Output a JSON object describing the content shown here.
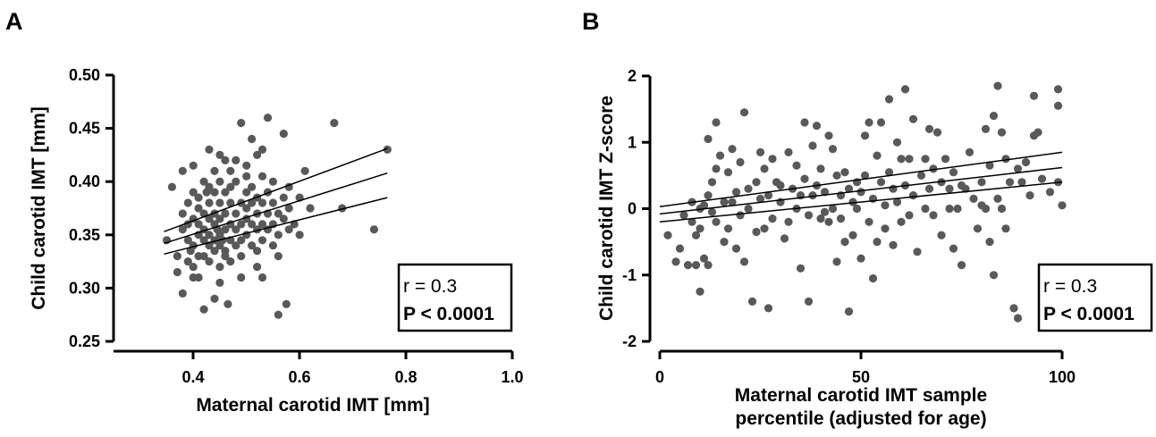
{
  "chart_data": [
    {
      "panel": "A",
      "type": "scatter",
      "xlabel": "Maternal carotid IMT [mm]",
      "ylabel": "Child carotid IMT [mm]",
      "xlim": [
        0.25,
        1.0
      ],
      "ylim": [
        0.25,
        0.5
      ],
      "x_ticks": [
        "0.4",
        "0.6",
        "0.8",
        "1.0"
      ],
      "y_ticks": [
        "0.25",
        "0.30",
        "0.35",
        "0.40",
        "0.45",
        "0.50"
      ],
      "stats": {
        "r": "r = 0.3",
        "p": "P < 0.0001"
      },
      "marker_color": "#595959",
      "regression": {
        "x": [
          0.345,
          0.765
        ],
        "fit": [
          0.342,
          0.408
        ],
        "lower": [
          0.332,
          0.385
        ],
        "upper": [
          0.353,
          0.431
        ]
      },
      "points": [
        [
          0.35,
          0.345
        ],
        [
          0.36,
          0.395
        ],
        [
          0.37,
          0.33
        ],
        [
          0.37,
          0.315
        ],
        [
          0.38,
          0.355
        ],
        [
          0.38,
          0.37
        ],
        [
          0.38,
          0.41
        ],
        [
          0.38,
          0.295
        ],
        [
          0.39,
          0.36
        ],
        [
          0.39,
          0.38
        ],
        [
          0.39,
          0.345
        ],
        [
          0.39,
          0.325
        ],
        [
          0.395,
          0.335
        ],
        [
          0.4,
          0.34
        ],
        [
          0.4,
          0.365
        ],
        [
          0.4,
          0.39
        ],
        [
          0.4,
          0.415
        ],
        [
          0.4,
          0.31
        ],
        [
          0.4,
          0.32
        ],
        [
          0.41,
          0.35
        ],
        [
          0.41,
          0.33
        ],
        [
          0.41,
          0.375
        ],
        [
          0.41,
          0.36
        ],
        [
          0.41,
          0.31
        ],
        [
          0.41,
          0.385
        ],
        [
          0.42,
          0.355
        ],
        [
          0.42,
          0.345
        ],
        [
          0.42,
          0.37
        ],
        [
          0.42,
          0.28
        ],
        [
          0.42,
          0.4
        ],
        [
          0.42,
          0.33
        ],
        [
          0.425,
          0.39
        ],
        [
          0.43,
          0.43
        ],
        [
          0.43,
          0.365
        ],
        [
          0.43,
          0.35
        ],
        [
          0.43,
          0.34
        ],
        [
          0.43,
          0.325
        ],
        [
          0.43,
          0.38
        ],
        [
          0.43,
          0.395
        ],
        [
          0.44,
          0.36
        ],
        [
          0.44,
          0.345
        ],
        [
          0.44,
          0.37
        ],
        [
          0.44,
          0.335
        ],
        [
          0.44,
          0.29
        ],
        [
          0.44,
          0.41
        ],
        [
          0.44,
          0.39
        ],
        [
          0.445,
          0.355
        ],
        [
          0.45,
          0.35
        ],
        [
          0.45,
          0.365
        ],
        [
          0.45,
          0.34
        ],
        [
          0.45,
          0.38
        ],
        [
          0.45,
          0.4
        ],
        [
          0.45,
          0.425
        ],
        [
          0.45,
          0.32
        ],
        [
          0.45,
          0.305
        ],
        [
          0.455,
          0.345
        ],
        [
          0.46,
          0.355
        ],
        [
          0.46,
          0.37
        ],
        [
          0.46,
          0.39
        ],
        [
          0.46,
          0.335
        ],
        [
          0.46,
          0.33
        ],
        [
          0.46,
          0.42
        ],
        [
          0.465,
          0.285
        ],
        [
          0.47,
          0.36
        ],
        [
          0.47,
          0.345
        ],
        [
          0.47,
          0.38
        ],
        [
          0.47,
          0.41
        ],
        [
          0.47,
          0.395
        ],
        [
          0.47,
          0.325
        ],
        [
          0.48,
          0.355
        ],
        [
          0.48,
          0.37
        ],
        [
          0.48,
          0.34
        ],
        [
          0.48,
          0.4
        ],
        [
          0.48,
          0.42
        ],
        [
          0.49,
          0.455
        ],
        [
          0.49,
          0.36
        ],
        [
          0.49,
          0.345
        ],
        [
          0.49,
          0.33
        ],
        [
          0.49,
          0.38
        ],
        [
          0.49,
          0.31
        ],
        [
          0.5,
          0.365
        ],
        [
          0.5,
          0.35
        ],
        [
          0.5,
          0.39
        ],
        [
          0.5,
          0.375
        ],
        [
          0.5,
          0.405
        ],
        [
          0.5,
          0.415
        ],
        [
          0.51,
          0.36
        ],
        [
          0.51,
          0.34
        ],
        [
          0.51,
          0.38
        ],
        [
          0.51,
          0.395
        ],
        [
          0.51,
          0.44
        ],
        [
          0.52,
          0.355
        ],
        [
          0.52,
          0.37
        ],
        [
          0.52,
          0.385
        ],
        [
          0.52,
          0.335
        ],
        [
          0.52,
          0.32
        ],
        [
          0.52,
          0.425
        ],
        [
          0.53,
          0.36
        ],
        [
          0.53,
          0.345
        ],
        [
          0.53,
          0.38
        ],
        [
          0.53,
          0.405
        ],
        [
          0.53,
          0.43
        ],
        [
          0.53,
          0.31
        ],
        [
          0.54,
          0.37
        ],
        [
          0.54,
          0.355
        ],
        [
          0.54,
          0.39
        ],
        [
          0.54,
          0.46
        ],
        [
          0.55,
          0.36
        ],
        [
          0.55,
          0.34
        ],
        [
          0.55,
          0.38
        ],
        [
          0.55,
          0.4
        ],
        [
          0.56,
          0.35
        ],
        [
          0.56,
          0.37
        ],
        [
          0.56,
          0.33
        ],
        [
          0.56,
          0.275
        ],
        [
          0.57,
          0.365
        ],
        [
          0.57,
          0.445
        ],
        [
          0.57,
          0.385
        ],
        [
          0.575,
          0.285
        ],
        [
          0.58,
          0.375
        ],
        [
          0.58,
          0.355
        ],
        [
          0.58,
          0.395
        ],
        [
          0.59,
          0.36
        ],
        [
          0.6,
          0.385
        ],
        [
          0.6,
          0.35
        ],
        [
          0.61,
          0.41
        ],
        [
          0.62,
          0.375
        ],
        [
          0.665,
          0.455
        ],
        [
          0.68,
          0.375
        ],
        [
          0.74,
          0.355
        ],
        [
          0.765,
          0.43
        ]
      ]
    },
    {
      "panel": "B",
      "type": "scatter",
      "xlabel": [
        "Maternal carotid IMT sample",
        "percentile (adjusted for age)"
      ],
      "ylabel": "Child carotid IMT Z-score",
      "xlim": [
        0,
        100
      ],
      "ylim": [
        -2,
        2
      ],
      "x_ticks": [
        "0",
        "50",
        "100"
      ],
      "y_ticks": [
        "-2",
        "-1",
        "0",
        "1",
        "2"
      ],
      "stats": {
        "r": "r = 0.3",
        "p": "P < 0.0001"
      },
      "marker_color": "#595959",
      "regression": {
        "x": [
          0,
          100
        ],
        "fit": [
          -0.08,
          0.62
        ],
        "lower": [
          -0.2,
          0.4
        ],
        "upper": [
          0.03,
          0.85
        ]
      },
      "points": [
        [
          2,
          -0.4
        ],
        [
          4,
          -0.8
        ],
        [
          5,
          -0.6
        ],
        [
          6,
          -0.1
        ],
        [
          7,
          -0.85
        ],
        [
          8,
          -0.2
        ],
        [
          8,
          0.1
        ],
        [
          9,
          -0.85
        ],
        [
          9,
          -0.4
        ],
        [
          10,
          -1.25
        ],
        [
          10,
          0.0
        ],
        [
          10,
          -0.3
        ],
        [
          11,
          -0.75
        ],
        [
          11,
          0.05
        ],
        [
          12,
          -0.85
        ],
        [
          12,
          0.2
        ],
        [
          12,
          1.05
        ],
        [
          13,
          0.4
        ],
        [
          13,
          -0.05
        ],
        [
          14,
          1.3
        ],
        [
          14,
          0.6
        ],
        [
          14,
          -0.2
        ],
        [
          15,
          0.8
        ],
        [
          16,
          -0.5
        ],
        [
          16,
          0.1
        ],
        [
          17,
          0.55
        ],
        [
          17,
          -0.3
        ],
        [
          18,
          0.9
        ],
        [
          18,
          0.1
        ],
        [
          19,
          0.25
        ],
        [
          19,
          -0.6
        ],
        [
          20,
          0.7
        ],
        [
          20,
          -0.1
        ],
        [
          21,
          1.45
        ],
        [
          21,
          -0.8
        ],
        [
          22,
          0.3
        ],
        [
          22,
          0.0
        ],
        [
          23,
          -1.4
        ],
        [
          24,
          -0.35
        ],
        [
          24,
          0.4
        ],
        [
          25,
          0.85
        ],
        [
          25,
          0.15
        ],
        [
          26,
          -0.3
        ],
        [
          26,
          0.6
        ],
        [
          27,
          -1.5
        ],
        [
          27,
          0.2
        ],
        [
          28,
          0.75
        ],
        [
          28,
          -0.15
        ],
        [
          29,
          0.4
        ],
        [
          30,
          0.1
        ],
        [
          30,
          0.35
        ],
        [
          31,
          -0.45
        ],
        [
          32,
          0.85
        ],
        [
          32,
          -0.2
        ],
        [
          33,
          0.3
        ],
        [
          34,
          0.0
        ],
        [
          34,
          0.65
        ],
        [
          35,
          -0.9
        ],
        [
          35,
          0.2
        ],
        [
          36,
          1.3
        ],
        [
          36,
          0.45
        ],
        [
          37,
          -1.4
        ],
        [
          37,
          -0.1
        ],
        [
          38,
          0.95
        ],
        [
          38,
          0.2
        ],
        [
          39,
          1.25
        ],
        [
          39,
          0.35
        ],
        [
          40,
          -0.15
        ],
        [
          40,
          0.6
        ],
        [
          41,
          -0.05
        ],
        [
          41,
          0.25
        ],
        [
          42,
          1.1
        ],
        [
          42,
          -0.2
        ],
        [
          43,
          0.9
        ],
        [
          43,
          0.0
        ],
        [
          44,
          -0.8
        ],
        [
          44,
          0.5
        ],
        [
          45,
          -0.15
        ],
        [
          45,
          0.2
        ],
        [
          46,
          0.55
        ],
        [
          46,
          -0.5
        ],
        [
          47,
          -1.55
        ],
        [
          47,
          0.3
        ],
        [
          48,
          0.1
        ],
        [
          48,
          -0.4
        ],
        [
          49,
          0.4
        ],
        [
          49,
          0.0
        ],
        [
          50,
          0.25
        ],
        [
          50,
          -0.75
        ],
        [
          51,
          1.1
        ],
        [
          51,
          0.5
        ],
        [
          52,
          1.3
        ],
        [
          52,
          -0.2
        ],
        [
          53,
          -1.05
        ],
        [
          53,
          0.15
        ],
        [
          54,
          0.8
        ],
        [
          54,
          -0.5
        ],
        [
          55,
          1.3
        ],
        [
          55,
          0.4
        ],
        [
          56,
          -0.3
        ],
        [
          56,
          0.05
        ],
        [
          57,
          1.65
        ],
        [
          57,
          0.55
        ],
        [
          58,
          0.3
        ],
        [
          58,
          -0.55
        ],
        [
          59,
          1.0
        ],
        [
          59,
          0.1
        ],
        [
          60,
          0.75
        ],
        [
          60,
          -0.2
        ],
        [
          61,
          1.8
        ],
        [
          61,
          0.35
        ],
        [
          62,
          0.75
        ],
        [
          62,
          -0.1
        ],
        [
          63,
          1.35
        ],
        [
          63,
          0.2
        ],
        [
          64,
          -0.65
        ],
        [
          65,
          0.5
        ],
        [
          66,
          0.75
        ],
        [
          66,
          0.0
        ],
        [
          67,
          1.2
        ],
        [
          67,
          0.3
        ],
        [
          68,
          0.6
        ],
        [
          68,
          -0.1
        ],
        [
          69,
          1.15
        ],
        [
          70,
          0.4
        ],
        [
          70,
          -0.4
        ],
        [
          71,
          0.75
        ],
        [
          72,
          0.0
        ],
        [
          72,
          0.3
        ],
        [
          73,
          -0.6
        ],
        [
          73,
          0.55
        ],
        [
          74,
          0.0
        ],
        [
          75,
          -0.85
        ],
        [
          75,
          0.35
        ],
        [
          76,
          0.3
        ],
        [
          77,
          0.85
        ],
        [
          78,
          0.15
        ],
        [
          79,
          -0.3
        ],
        [
          80,
          0.4
        ],
        [
          80,
          0.05
        ],
        [
          81,
          1.2
        ],
        [
          81,
          0.0
        ],
        [
          82,
          -0.5
        ],
        [
          82,
          0.65
        ],
        [
          83,
          -1.0
        ],
        [
          83,
          1.4
        ],
        [
          84,
          1.85
        ],
        [
          84,
          0.15
        ],
        [
          85,
          1.15
        ],
        [
          85,
          0.0
        ],
        [
          86,
          0.75
        ],
        [
          86,
          -0.3
        ],
        [
          87,
          0.4
        ],
        [
          88,
          -1.5
        ],
        [
          89,
          -1.65
        ],
        [
          89,
          0.6
        ],
        [
          90,
          0.4
        ],
        [
          91,
          0.7
        ],
        [
          92,
          0.2
        ],
        [
          93,
          1.7
        ],
        [
          93,
          1.1
        ],
        [
          94,
          1.15
        ],
        [
          95,
          0.45
        ],
        [
          97,
          0.25
        ],
        [
          99,
          1.8
        ],
        [
          99,
          1.55
        ],
        [
          99,
          0.4
        ],
        [
          100,
          0.05
        ]
      ]
    }
  ]
}
